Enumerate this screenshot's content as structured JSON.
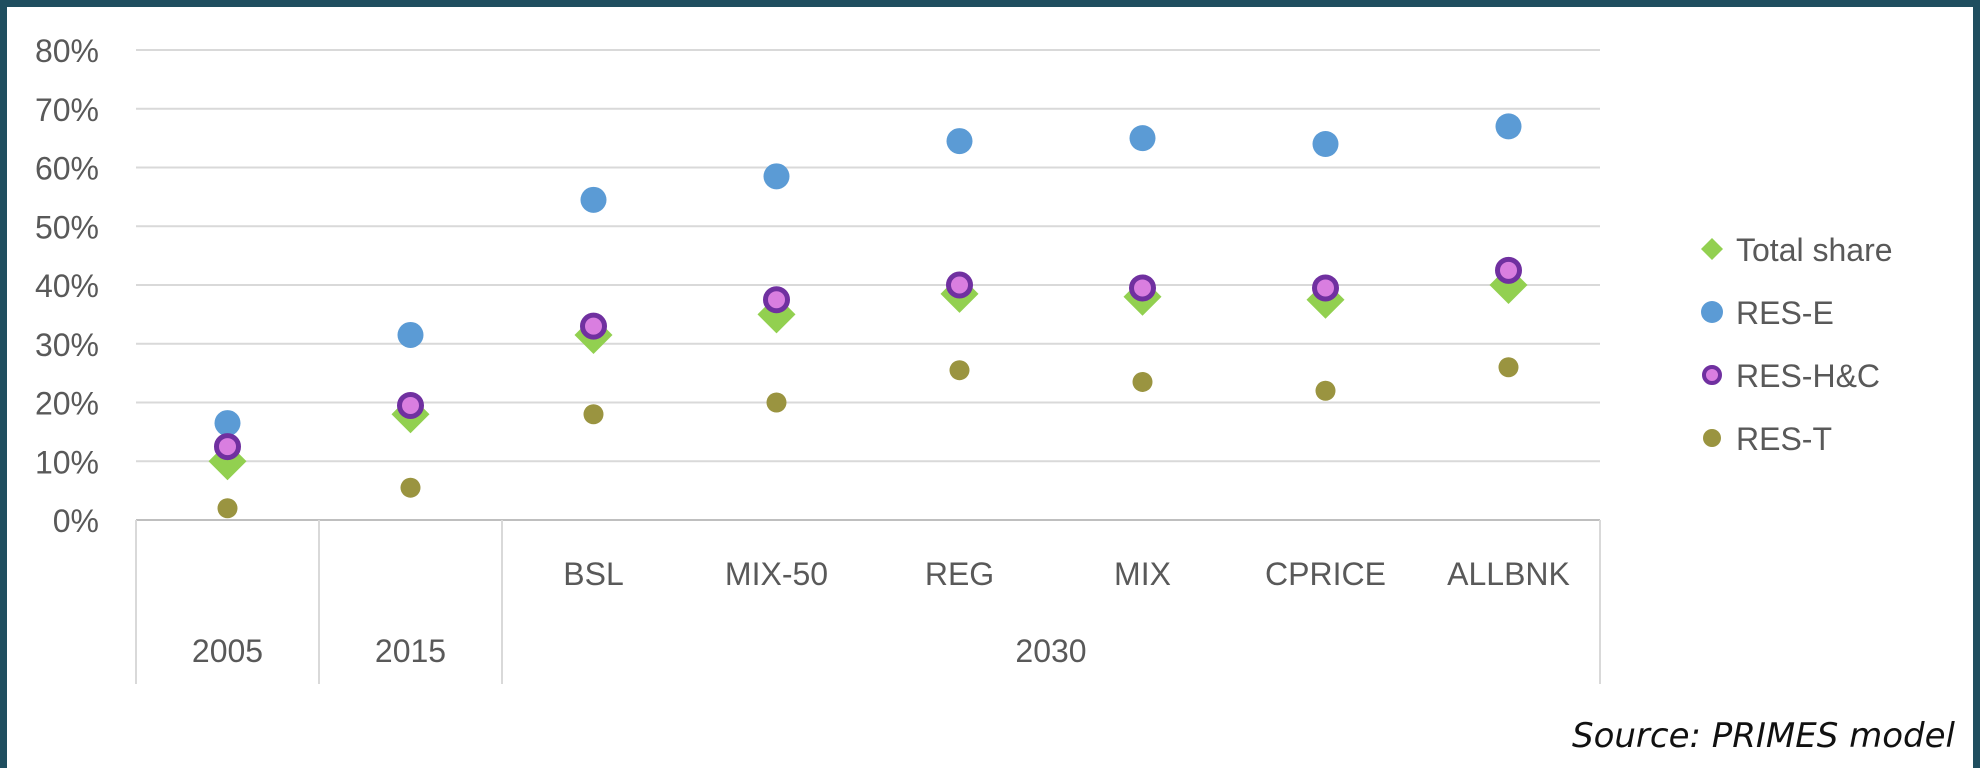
{
  "chart_data": {
    "type": "scatter",
    "title": "",
    "xlabel": "",
    "ylabel": "",
    "ylim": [
      0,
      80
    ],
    "y_ticks": [
      "0%",
      "10%",
      "20%",
      "30%",
      "40%",
      "50%",
      "60%",
      "70%",
      "80%"
    ],
    "categories": [
      "2005",
      "2015",
      "BSL",
      "MIX-50",
      "REG",
      "MIX",
      "CPRICE",
      "ALLBNK"
    ],
    "category_groups": [
      {
        "label": "2005",
        "span": 1
      },
      {
        "label": "2015",
        "span": 1
      },
      {
        "label": "2030",
        "span": 6
      }
    ],
    "grid": true,
    "legend_position": "right",
    "series": [
      {
        "name": "Total share",
        "marker": "diamond",
        "color": "#92d050",
        "values": [
          10,
          18,
          31.5,
          35,
          38.5,
          38,
          37.5,
          40
        ]
      },
      {
        "name": "RES-E",
        "marker": "circle",
        "color": "#5b9bd5",
        "values": [
          16.5,
          31.5,
          54.5,
          58.5,
          64.5,
          65,
          64,
          67
        ]
      },
      {
        "name": "RES-H&C",
        "marker": "ring",
        "color": "#d97ee0",
        "edge_color": "#7030a0",
        "values": [
          12.5,
          19.5,
          33,
          37.5,
          40,
          39.5,
          39.5,
          42.5
        ]
      },
      {
        "name": "RES-T",
        "marker": "small-circle",
        "color": "#9a9440",
        "values": [
          2,
          5.5,
          18,
          20,
          25.5,
          23.5,
          22,
          26
        ]
      }
    ]
  },
  "source_note": "Source: PRIMES model"
}
